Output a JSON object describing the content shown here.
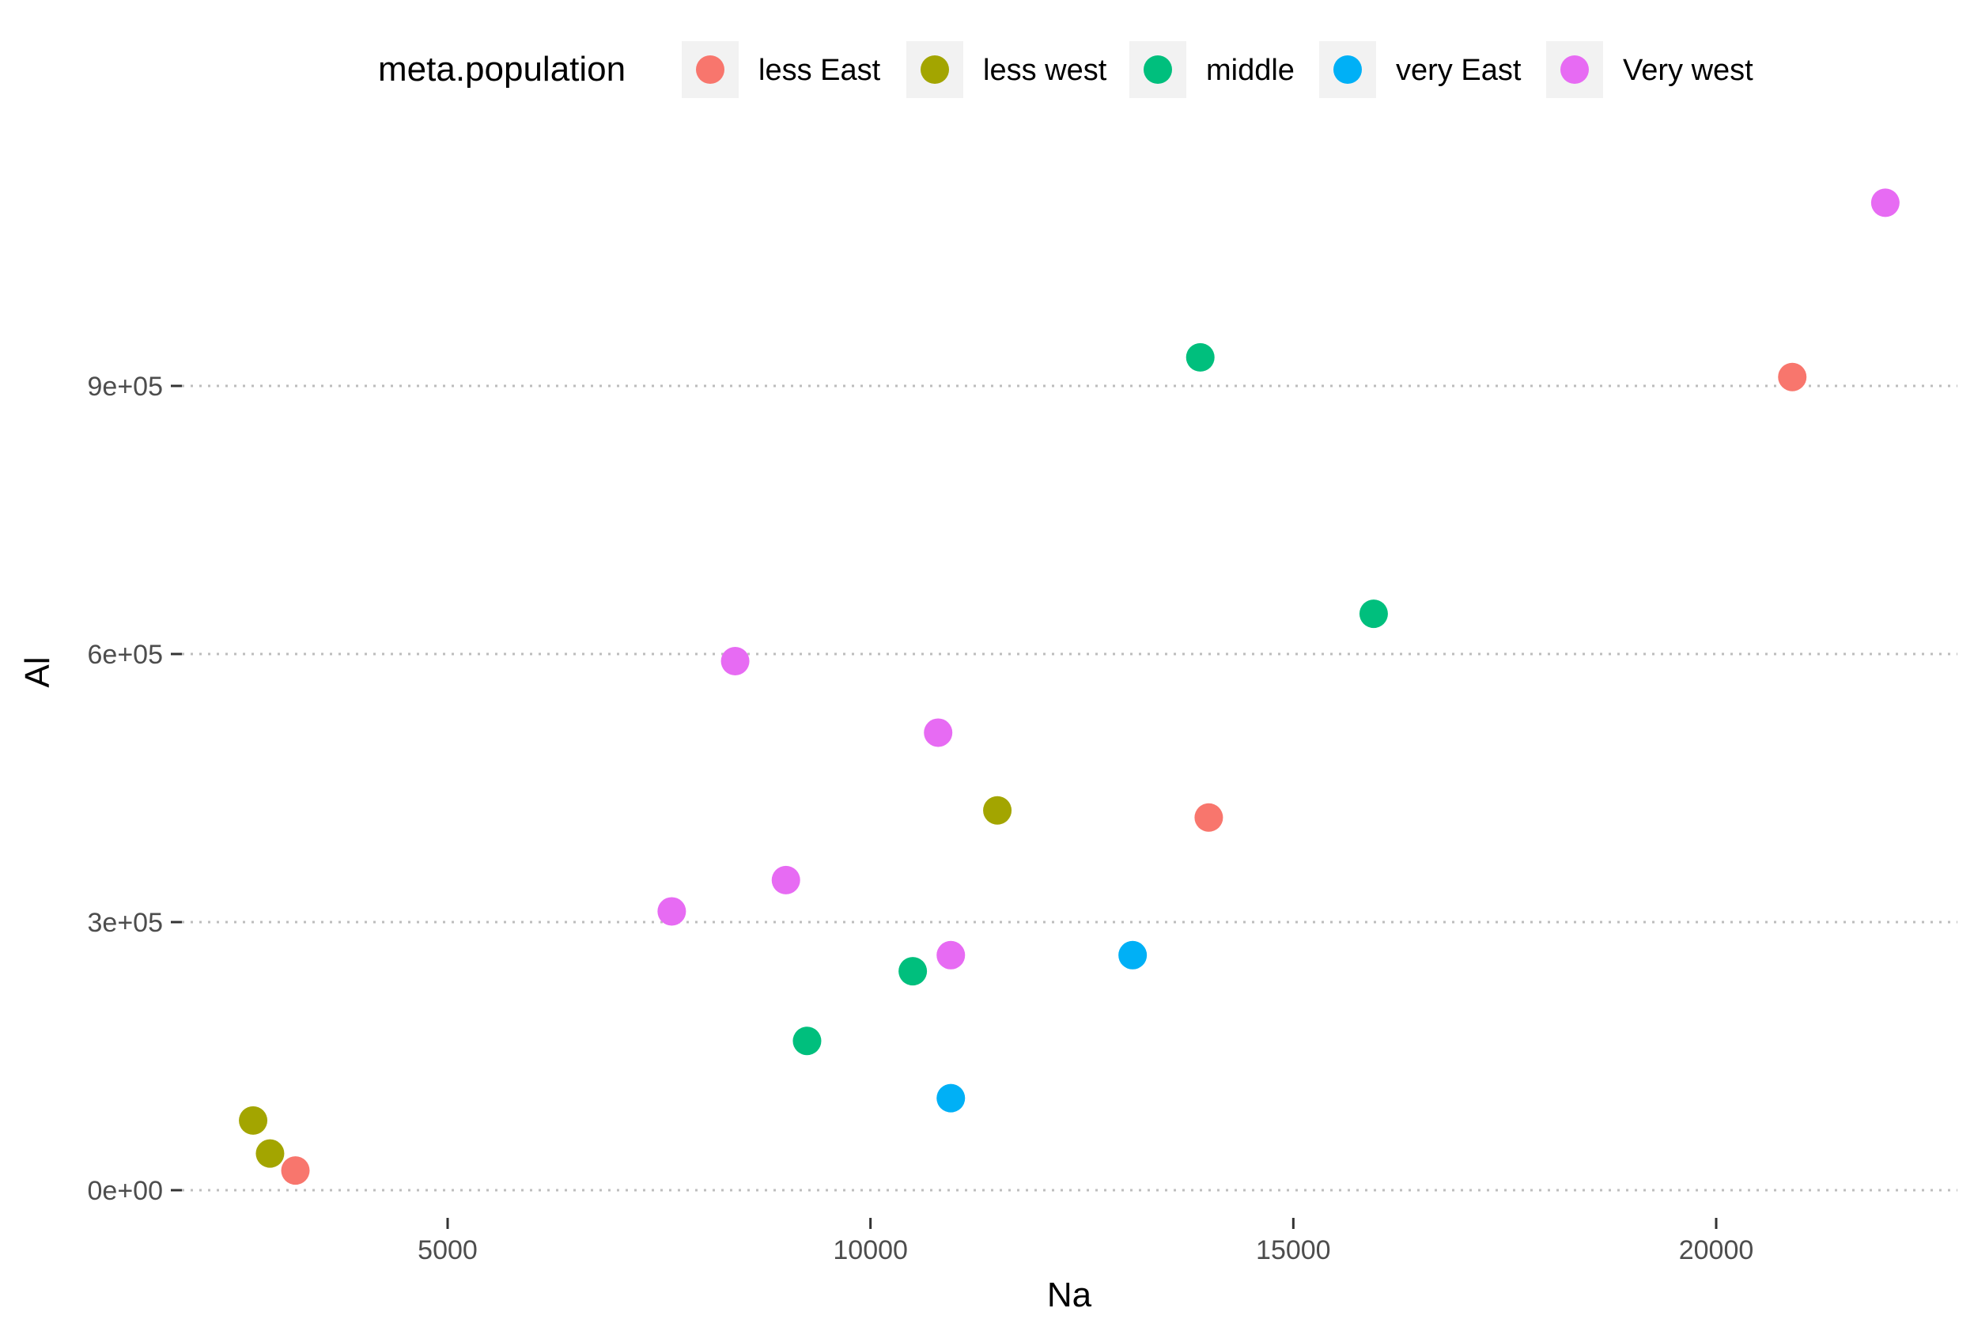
{
  "chart_data": {
    "type": "scatter",
    "xlabel": "Na",
    "ylabel": "Al",
    "xlim": [
      1800,
      23000
    ],
    "ylim": [
      -30000,
      1230000
    ],
    "x_ticks": [
      5000,
      10000,
      15000,
      20000
    ],
    "x_tick_labels": [
      "5000",
      "10000",
      "15000",
      "20000"
    ],
    "y_ticks": [
      0,
      300000,
      600000,
      900000
    ],
    "y_tick_labels": [
      "0e+00",
      "3e+05",
      "6e+05",
      "9e+05"
    ],
    "grid": "horizontal-dotted",
    "legend": {
      "title": "meta.population",
      "position": "top"
    },
    "series": [
      {
        "name": "less East",
        "color": "#F8766D",
        "points": [
          [
            3200,
            22000
          ],
          [
            14000,
            417000
          ],
          [
            20900,
            910000
          ]
        ]
      },
      {
        "name": "less west",
        "color": "#A3A500",
        "points": [
          [
            2700,
            78000
          ],
          [
            2900,
            41000
          ],
          [
            11500,
            425000
          ]
        ]
      },
      {
        "name": "middle",
        "color": "#00BF7D",
        "points": [
          [
            9250,
            167000
          ],
          [
            10500,
            245000
          ],
          [
            13900,
            932000
          ],
          [
            15950,
            645000
          ]
        ]
      },
      {
        "name": "very East",
        "color": "#00B0F6",
        "points": [
          [
            10950,
            103000
          ],
          [
            13100,
            263000
          ]
        ]
      },
      {
        "name": "Very west",
        "color": "#E76BF3",
        "points": [
          [
            7650,
            312000
          ],
          [
            8400,
            592000
          ],
          [
            9000,
            347000
          ],
          [
            10800,
            512000
          ],
          [
            10950,
            263000
          ],
          [
            22000,
            1105000
          ]
        ]
      }
    ]
  }
}
